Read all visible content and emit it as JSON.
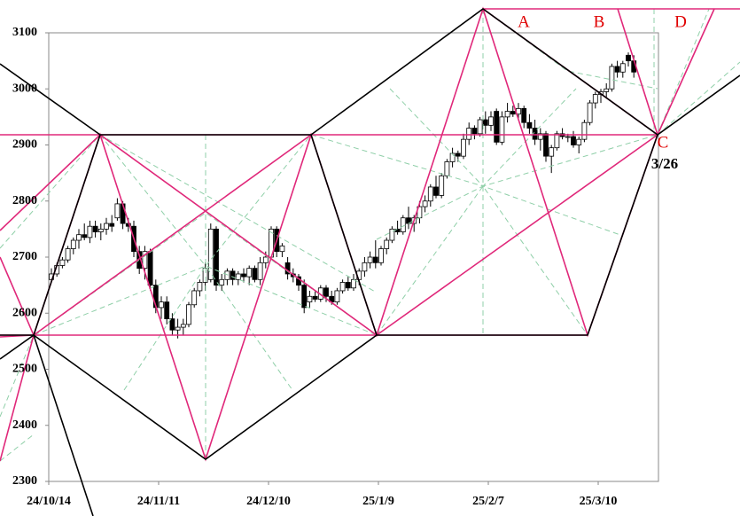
{
  "chart_data": {
    "type": "candlestick",
    "categories": [
      "24/10/14",
      null,
      null,
      null,
      null,
      null,
      null,
      null,
      null,
      null,
      null,
      null,
      null,
      null,
      null,
      null,
      null,
      null,
      null,
      null,
      "24/11/11",
      null,
      null,
      null,
      null,
      null,
      null,
      null,
      null,
      null,
      null,
      null,
      null,
      null,
      null,
      null,
      null,
      null,
      null,
      null,
      "24/12/10",
      null,
      null,
      null,
      null,
      null,
      null,
      null,
      null,
      null,
      null,
      null,
      null,
      null,
      null,
      null,
      null,
      null,
      null,
      null,
      "25/1/9",
      null,
      null,
      null,
      null,
      null,
      null,
      null,
      null,
      null,
      null,
      null,
      null,
      null,
      null,
      null,
      null,
      null,
      null,
      null,
      "25/2/7",
      null,
      null,
      null,
      null,
      null,
      null,
      null,
      null,
      null,
      null,
      null,
      null,
      null,
      null,
      null,
      null,
      null,
      null,
      null,
      "25/3/10",
      null,
      null,
      null,
      null,
      null,
      null
    ],
    "candles": [
      [
        2660,
        2680,
        2655,
        2670
      ],
      [
        2670,
        2690,
        2665,
        2685
      ],
      [
        2685,
        2700,
        2680,
        2695
      ],
      [
        2695,
        2720,
        2690,
        2715
      ],
      [
        2715,
        2735,
        2705,
        2730
      ],
      [
        2730,
        2750,
        2715,
        2740
      ],
      [
        2740,
        2760,
        2730,
        2735
      ],
      [
        2735,
        2765,
        2725,
        2755
      ],
      [
        2755,
        2765,
        2735,
        2745
      ],
      [
        2745,
        2760,
        2730,
        2750
      ],
      [
        2750,
        2770,
        2740,
        2760
      ],
      [
        2760,
        2775,
        2745,
        2755
      ],
      [
        2770,
        2805,
        2765,
        2795
      ],
      [
        2795,
        2800,
        2750,
        2760
      ],
      [
        2760,
        2770,
        2745,
        2755
      ],
      [
        2755,
        2765,
        2700,
        2710
      ],
      [
        2710,
        2720,
        2670,
        2680
      ],
      [
        2680,
        2720,
        2660,
        2710
      ],
      [
        2710,
        2715,
        2640,
        2650
      ],
      [
        2650,
        2660,
        2600,
        2610
      ],
      [
        2610,
        2630,
        2590,
        2620
      ],
      [
        2620,
        2630,
        2580,
        2590
      ],
      [
        2590,
        2600,
        2560,
        2570
      ],
      [
        2570,
        2590,
        2555,
        2575
      ],
      [
        2575,
        2590,
        2560,
        2580
      ],
      [
        2580,
        2620,
        2575,
        2615
      ],
      [
        2615,
        2645,
        2610,
        2640
      ],
      [
        2640,
        2660,
        2630,
        2655
      ],
      [
        2655,
        2690,
        2640,
        2680
      ],
      [
        2660,
        2760,
        2655,
        2750
      ],
      [
        2750,
        2755,
        2640,
        2650
      ],
      [
        2650,
        2670,
        2640,
        2660
      ],
      [
        2660,
        2680,
        2650,
        2675
      ],
      [
        2675,
        2680,
        2650,
        2660
      ],
      [
        2660,
        2675,
        2650,
        2670
      ],
      [
        2670,
        2680,
        2655,
        2665
      ],
      [
        2665,
        2685,
        2650,
        2680
      ],
      [
        2680,
        2685,
        2655,
        2660
      ],
      [
        2660,
        2700,
        2650,
        2690
      ],
      [
        2690,
        2710,
        2680,
        2700
      ],
      [
        2700,
        2755,
        2695,
        2750
      ],
      [
        2750,
        2755,
        2700,
        2710
      ],
      [
        2710,
        2725,
        2700,
        2720
      ],
      [
        2690,
        2700,
        2660,
        2670
      ],
      [
        2670,
        2680,
        2655,
        2665
      ],
      [
        2665,
        2670,
        2640,
        2650
      ],
      [
        2650,
        2660,
        2600,
        2610
      ],
      [
        2620,
        2640,
        2610,
        2630
      ],
      [
        2630,
        2640,
        2620,
        2625
      ],
      [
        2625,
        2650,
        2620,
        2645
      ],
      [
        2645,
        2650,
        2620,
        2630
      ],
      [
        2630,
        2640,
        2615,
        2620
      ],
      [
        2620,
        2645,
        2615,
        2640
      ],
      [
        2640,
        2660,
        2635,
        2655
      ],
      [
        2655,
        2665,
        2640,
        2645
      ],
      [
        2645,
        2670,
        2640,
        2660
      ],
      [
        2660,
        2680,
        2650,
        2675
      ],
      [
        2675,
        2700,
        2665,
        2690
      ],
      [
        2690,
        2710,
        2680,
        2700
      ],
      [
        2700,
        2730,
        2680,
        2690
      ],
      [
        2690,
        2720,
        2685,
        2715
      ],
      [
        2715,
        2735,
        2705,
        2730
      ],
      [
        2730,
        2755,
        2725,
        2750
      ],
      [
        2750,
        2765,
        2740,
        2745
      ],
      [
        2745,
        2775,
        2740,
        2770
      ],
      [
        2770,
        2790,
        2750,
        2760
      ],
      [
        2760,
        2775,
        2745,
        2770
      ],
      [
        2770,
        2800,
        2760,
        2790
      ],
      [
        2790,
        2810,
        2780,
        2800
      ],
      [
        2800,
        2830,
        2790,
        2825
      ],
      [
        2825,
        2845,
        2805,
        2810
      ],
      [
        2810,
        2850,
        2805,
        2845
      ],
      [
        2845,
        2875,
        2840,
        2870
      ],
      [
        2870,
        2895,
        2860,
        2885
      ],
      [
        2885,
        2890,
        2870,
        2880
      ],
      [
        2880,
        2920,
        2875,
        2910
      ],
      [
        2910,
        2940,
        2900,
        2930
      ],
      [
        2930,
        2935,
        2910,
        2920
      ],
      [
        2920,
        2950,
        2915,
        2945
      ],
      [
        2945,
        2960,
        2920,
        2935
      ],
      [
        2935,
        2960,
        2925,
        2950
      ],
      [
        2960,
        2965,
        2900,
        2905
      ],
      [
        2905,
        2960,
        2900,
        2950
      ],
      [
        2950,
        2975,
        2940,
        2960
      ],
      [
        2960,
        2970,
        2950,
        2955
      ],
      [
        2955,
        2975,
        2945,
        2965
      ],
      [
        2965,
        2970,
        2930,
        2940
      ],
      [
        2940,
        2955,
        2920,
        2930
      ],
      [
        2930,
        2945,
        2900,
        2910
      ],
      [
        2910,
        2930,
        2890,
        2920
      ],
      [
        2920,
        2925,
        2870,
        2880
      ],
      [
        2880,
        2900,
        2850,
        2895
      ],
      [
        2895,
        2925,
        2890,
        2920
      ],
      [
        2920,
        2930,
        2910,
        2915
      ],
      [
        2915,
        2920,
        2905,
        2915
      ],
      [
        2915,
        2925,
        2895,
        2900
      ],
      [
        2900,
        2915,
        2885,
        2910
      ],
      [
        2910,
        2945,
        2905,
        2940
      ],
      [
        2940,
        2980,
        2935,
        2975
      ],
      [
        2975,
        2995,
        2965,
        2990
      ],
      [
        2990,
        3000,
        2975,
        2995
      ],
      [
        2995,
        3010,
        2985,
        3000
      ],
      [
        3000,
        3045,
        2995,
        3040
      ],
      [
        3040,
        3050,
        3020,
        3030
      ],
      [
        3030,
        3050,
        3020,
        3045
      ],
      [
        3060,
        3065,
        3040,
        3050
      ],
      [
        3050,
        3060,
        3020,
        3030
      ]
    ],
    "up_color": "#ffffff",
    "down_color": "#000000",
    "ylim": [
      2300,
      3100
    ],
    "yticks": [
      2300,
      2400,
      2500,
      2600,
      2700,
      2800,
      2900,
      3000,
      3100
    ],
    "annotations": [
      "A",
      "B",
      "C",
      "D",
      "3/26"
    ]
  }
}
